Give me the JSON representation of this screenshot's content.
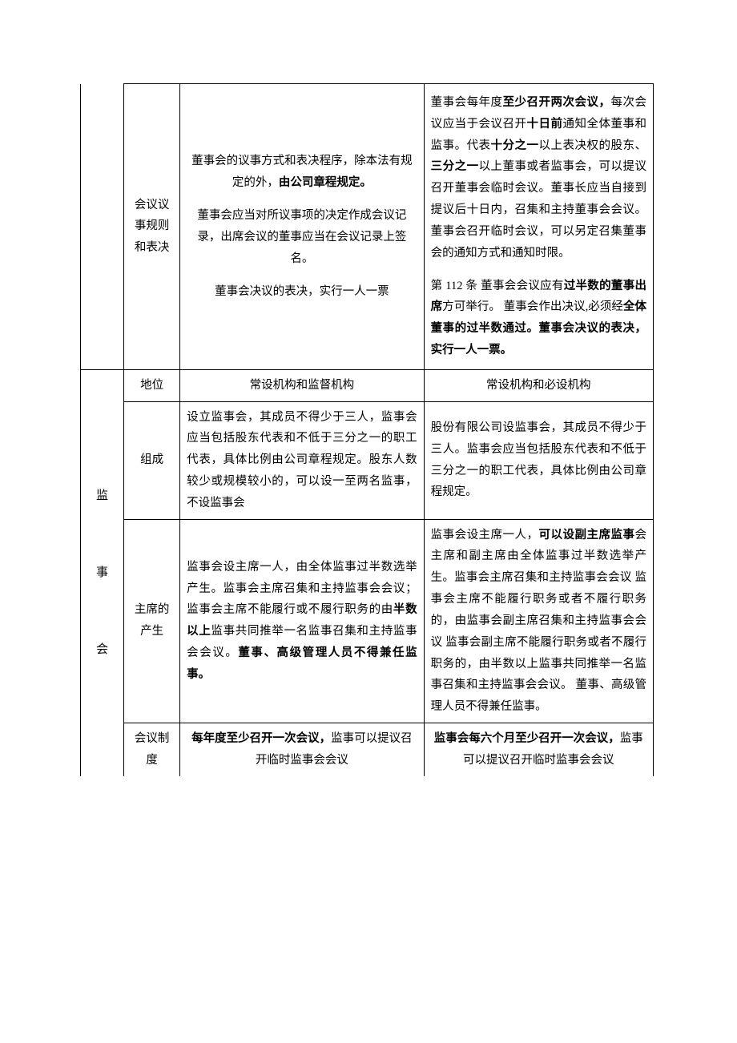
{
  "section1": {
    "row1": {
      "label": "会议议事规则和表决",
      "mid_p1_a": "董事会的议事方式和表决程序，除本法有规定的外，",
      "mid_p1_b": "由公司章程规定。",
      "mid_p2": "董事会应当对所议事项的决定作成会议记录，出席会议的董事应当在会议记录上签名。",
      "mid_p3": "董事会决议的表决，实行一人一票",
      "right_p1_a": "董事会每年度",
      "right_p1_b": "至少召开两次会议，",
      "right_p1_c": "每次会议应当于会议召开",
      "right_p1_d": "十日前",
      "right_p1_e": "通知全体董事和监事。代表",
      "right_p1_f": "十分之一",
      "right_p1_g": "以上表决权的股东、",
      "right_p1_h": "三分之一",
      "right_p1_i": "以上董事或者监事会，可以提议召开董事会临时会议。董事长应当自接到提议后十日内，召集和主持董事会会议。  董事会召开临时会议，可以另定召集董事会的通知方式和通知时限。",
      "right_p2_a": "第 112 条   董事会会议应有",
      "right_p2_b": "过半数的董事出席",
      "right_p2_c": "方可举行。 董事会作出决议,必须经",
      "right_p2_d": "全体董事的过半数通过。董事会决议的表决，实行一人一票。"
    }
  },
  "section2": {
    "group": "监　事　会",
    "rows": {
      "r1": {
        "label": "地位",
        "mid": "常设机构和监督机构",
        "right": "常设机构和必设机构"
      },
      "r2": {
        "label": "组成",
        "mid": "设立监事会，其成员不得少于三人，监事会应当包括股东代表和不低于三分之一的职工代表，具体比例由公司章程规定。股东人数较少或规模较小的，可以设一至两名监事，不设监事会",
        "right": "股份有限公司设监事会，其成员不得少于三人。监事会应当包括股东代表和不低于三分之一的职工代表，具体比例由公司章程规定。"
      },
      "r3": {
        "label": "主席的产生",
        "mid_a": "监事会设主席一人，由全体监事过半数选举产生。监事会主席召集和主持监事会会议；监事会主席不能履行或不履行职务的由",
        "mid_b": "半数以上",
        "mid_c": "监事共同推举一名监事召集和主持监事会会议。",
        "mid_d": "董事、高级管理人员不得兼任监事。",
        "right_a": "监事会设主席一人，",
        "right_b": "可以设副主席监事",
        "right_c": "会主席和副主席由全体监事过半数选举产生。监事会主席召集和主持监事会会议  监事会主席不能履行职务或者不履行职务的，由监事会副主席召集和主持监事会会议  监事会副主席不能履行职务或者不履行职务的，由半数以上监事共同推举一名监事召集和主持监事会会议。  董事、高级管理人员不得兼任监事。"
      },
      "r4": {
        "label": "会议制度",
        "mid_a": "每年度至少召开一次会议，",
        "mid_b": "监事可以提议召开临时监事会会议",
        "right_a": "监事会每六个月至少召开一次会议，",
        "right_b": "监事可以提议召开临时监事会会议"
      }
    }
  }
}
